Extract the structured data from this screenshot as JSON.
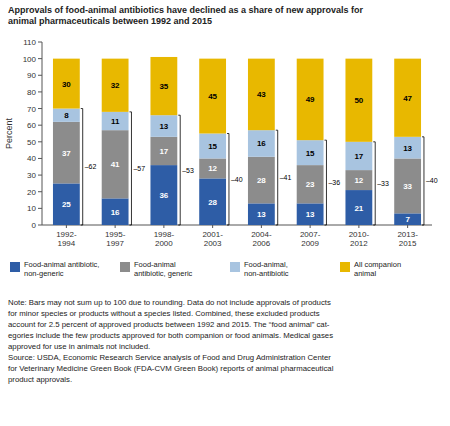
{
  "chart_data": {
    "type": "bar",
    "stacked": true,
    "data_labels": true,
    "grid": false,
    "legend": "bottom",
    "title": "Approvals of food-animal antibiotics have declined as a share of new approvals for\nanimal pharmaceuticals between 1992 and 2015",
    "y_label": "Percent",
    "categories": [
      "1992-\n1994",
      "1995-\n1997",
      "1998-\n2000",
      "2001-\n2003",
      "2004-\n2006",
      "2007-\n2009",
      "2010-\n2012",
      "2013-\n2015"
    ],
    "series": [
      {
        "name": "Food-animal antibiotic,\nnon-generic",
        "color": "#2E5DA6",
        "values": [
          25,
          16,
          36,
          28,
          13,
          13,
          21,
          7
        ]
      },
      {
        "name": "Food-animal\nantibiotic, generic",
        "color": "#8C8C8C",
        "values": [
          37,
          41,
          17,
          12,
          28,
          23,
          12,
          33
        ]
      },
      {
        "name": "Food-animal,\nnon-antibiotic",
        "color": "#A8C4E0",
        "values": [
          8,
          11,
          13,
          15,
          16,
          15,
          17,
          13
        ]
      },
      {
        "name": "All companion\nanimal",
        "color": "#E8B800",
        "values": [
          30,
          32,
          35,
          45,
          43,
          49,
          50,
          47
        ]
      }
    ],
    "ylim": [
      0,
      110
    ],
    "yticks": [
      0,
      10,
      20,
      30,
      40,
      50,
      60,
      70,
      80,
      90,
      100,
      110
    ],
    "annotations": [
      {
        "value": 62,
        "label": "–62"
      },
      {
        "value": 57,
        "label": "–57"
      },
      {
        "value": 53,
        "label": "–53"
      },
      {
        "value": 40,
        "label": "–40"
      },
      {
        "value": 41,
        "label": "–41"
      },
      {
        "value": 36,
        "label": "–36"
      },
      {
        "value": 33,
        "label": "–33"
      },
      {
        "value": 40,
        "label": "–40"
      }
    ],
    "note": "Note: Bars may not sum up to 100 due to rounding. Data do not include approvals of products\nfor minor species or products without a species listed. Combined, these excluded products\naccount for 2.5 percent of approved products between 1992 and 2015. The “food animal” cat-\negories include the few products approved for both companion or food animals. Medical gases\napproved for use in animals not included.\nSource: USDA, Economic Research Service analysis of Food and Drug Administration Center\nfor Veterinary Medicine Green Book (FDA-CVM Green Book) reports of animal pharmaceutical\nproduct approvals."
  }
}
